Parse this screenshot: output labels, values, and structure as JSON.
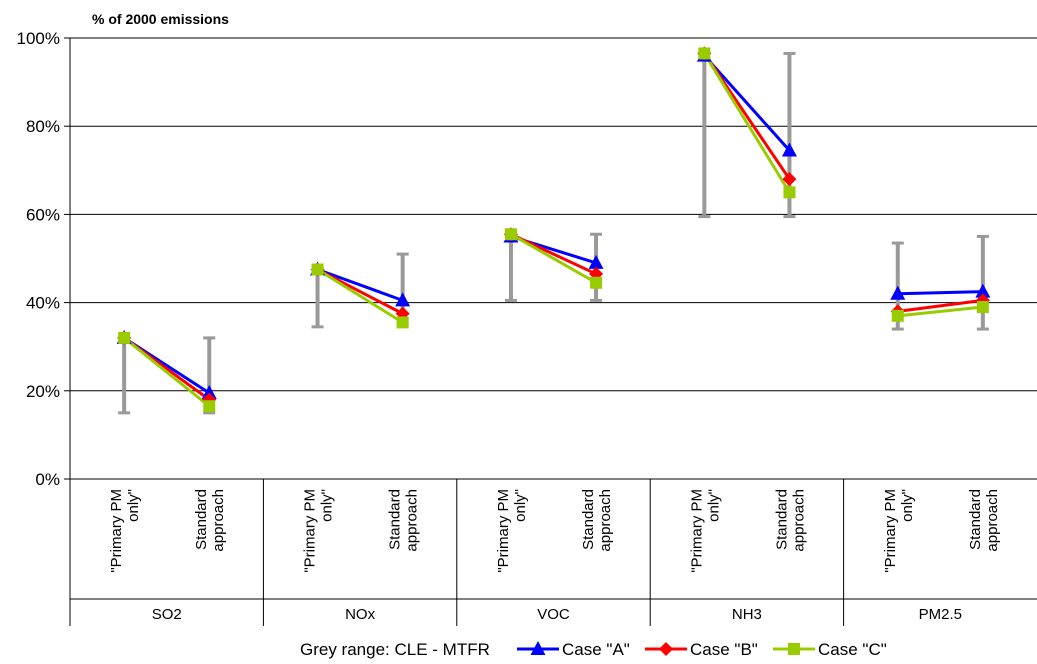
{
  "chart_data": {
    "type": "line",
    "ylabel": "% of 2000 emissions",
    "ylim": [
      0,
      100
    ],
    "yticks": [
      0,
      20,
      40,
      60,
      80,
      100
    ],
    "ytick_labels": [
      "0%",
      "20%",
      "40%",
      "60%",
      "80%",
      "100%"
    ],
    "grid": true,
    "groups": [
      {
        "name": "SO2",
        "categories": [
          "\"Primary PM only\"",
          "Standard approach"
        ],
        "range": [
          [
            15,
            32
          ],
          [
            15,
            32
          ]
        ],
        "series": [
          {
            "name": "Case \"A\"",
            "values": [
              32,
              19.5
            ]
          },
          {
            "name": "Case \"B\"",
            "values": [
              32,
              18
            ]
          },
          {
            "name": "Case \"C\"",
            "values": [
              32,
              16.5
            ]
          }
        ]
      },
      {
        "name": "NOx",
        "categories": [
          "\"Primary PM only\"",
          "Standard approach"
        ],
        "range": [
          [
            34.5,
            47.5
          ],
          [
            35,
            51
          ]
        ],
        "series": [
          {
            "name": "Case \"A\"",
            "values": [
              47.5,
              40.5
            ]
          },
          {
            "name": "Case \"B\"",
            "values": [
              47.5,
              37.5
            ]
          },
          {
            "name": "Case \"C\"",
            "values": [
              47.5,
              35.5
            ]
          }
        ]
      },
      {
        "name": "VOC",
        "categories": [
          "\"Primary PM only\"",
          "Standard approach"
        ],
        "range": [
          [
            40.5,
            55.5
          ],
          [
            40.5,
            55.5
          ]
        ],
        "series": [
          {
            "name": "Case \"A\"",
            "values": [
              55,
              49
            ]
          },
          {
            "name": "Case \"B\"",
            "values": [
              55.5,
              46.5
            ]
          },
          {
            "name": "Case \"C\"",
            "values": [
              55.5,
              44.5
            ]
          }
        ]
      },
      {
        "name": "NH3",
        "categories": [
          "\"Primary PM only\"",
          "Standard approach"
        ],
        "range": [
          [
            59.5,
            96.5
          ],
          [
            59.5,
            96.5
          ]
        ],
        "series": [
          {
            "name": "Case \"A\"",
            "values": [
              96,
              74.5
            ]
          },
          {
            "name": "Case \"B\"",
            "values": [
              96.5,
              68
            ]
          },
          {
            "name": "Case \"C\"",
            "values": [
              96.5,
              65
            ]
          }
        ]
      },
      {
        "name": "PM2.5",
        "categories": [
          "\"Primary PM only\"",
          "Standard approach"
        ],
        "range": [
          [
            34,
            53.5
          ],
          [
            34,
            55
          ]
        ],
        "series": [
          {
            "name": "Case \"A\"",
            "values": [
              42,
              42.5
            ]
          },
          {
            "name": "Case \"B\"",
            "values": [
              38,
              40.5
            ]
          },
          {
            "name": "Case \"C\"",
            "values": [
              37,
              39
            ]
          }
        ]
      }
    ],
    "series_style": [
      {
        "name": "Case \"A\"",
        "color": "#0000ff",
        "marker": "triangle"
      },
      {
        "name": "Case \"B\"",
        "color": "#ff0000",
        "marker": "diamond"
      },
      {
        "name": "Case \"C\"",
        "color": "#99cc00",
        "marker": "square"
      }
    ],
    "range_color": "#999999",
    "legend": {
      "position": "bottom",
      "range_label": "Grey range: CLE - MTFR",
      "entries": [
        "Case \"A\"",
        "Case \"B\"",
        "Case \"C\""
      ]
    }
  }
}
